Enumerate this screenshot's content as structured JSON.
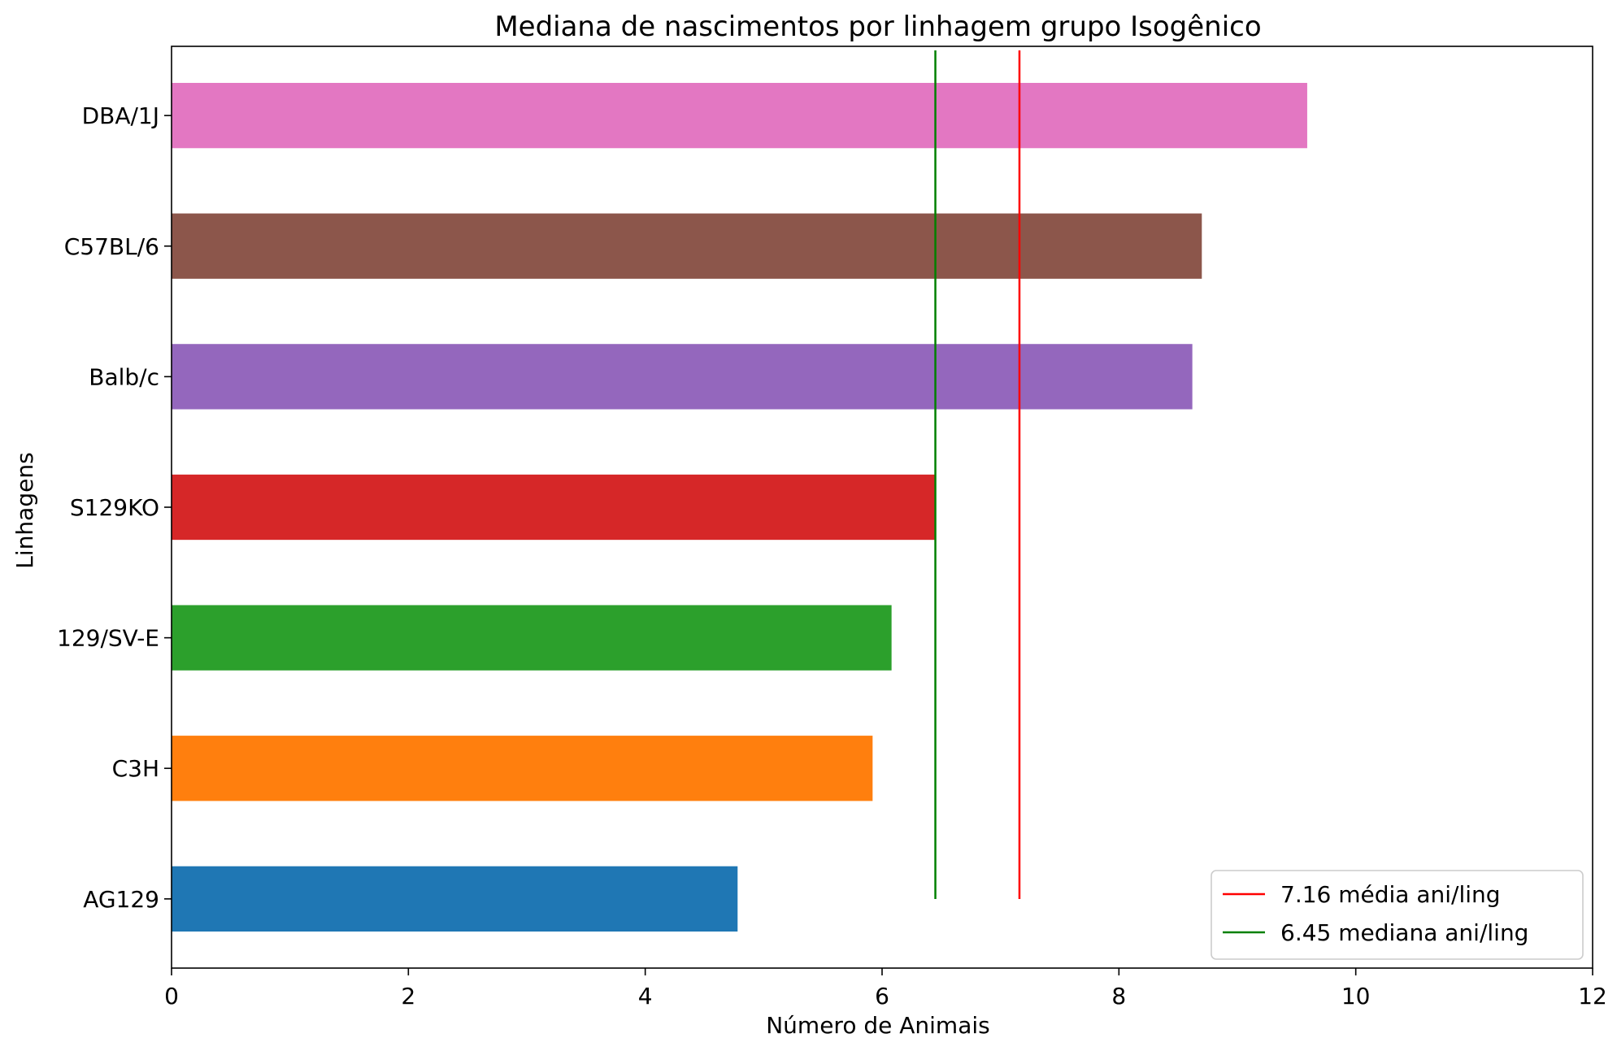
{
  "chart_data": {
    "type": "bar",
    "orientation": "horizontal",
    "title": "Mediana de nascimentos por linhagem grupo Isogênico",
    "xlabel": "Número de Animais",
    "ylabel": "Linhagens",
    "categories": [
      "AG129",
      "C3H",
      "129/SV-E",
      "S129KO",
      "Balb/c",
      "C57BL/6",
      "DBA/1J"
    ],
    "values": [
      4.78,
      5.92,
      6.08,
      6.45,
      8.62,
      8.7,
      9.59
    ],
    "colors": [
      "#1f77b4",
      "#ff7f0e",
      "#2ca02c",
      "#d62728",
      "#9467bd",
      "#8c564b",
      "#e377c2"
    ],
    "xlim": [
      0,
      12
    ],
    "xticks": [
      0,
      2,
      4,
      6,
      8,
      10,
      12
    ],
    "grid": false,
    "legend_position": "bottom-right",
    "reference_lines": [
      {
        "value": 7.16,
        "label": "7.16 média ani/ling",
        "color": "#ff0000"
      },
      {
        "value": 6.45,
        "label": "6.45 mediana ani/ling",
        "color": "#008000"
      }
    ]
  }
}
